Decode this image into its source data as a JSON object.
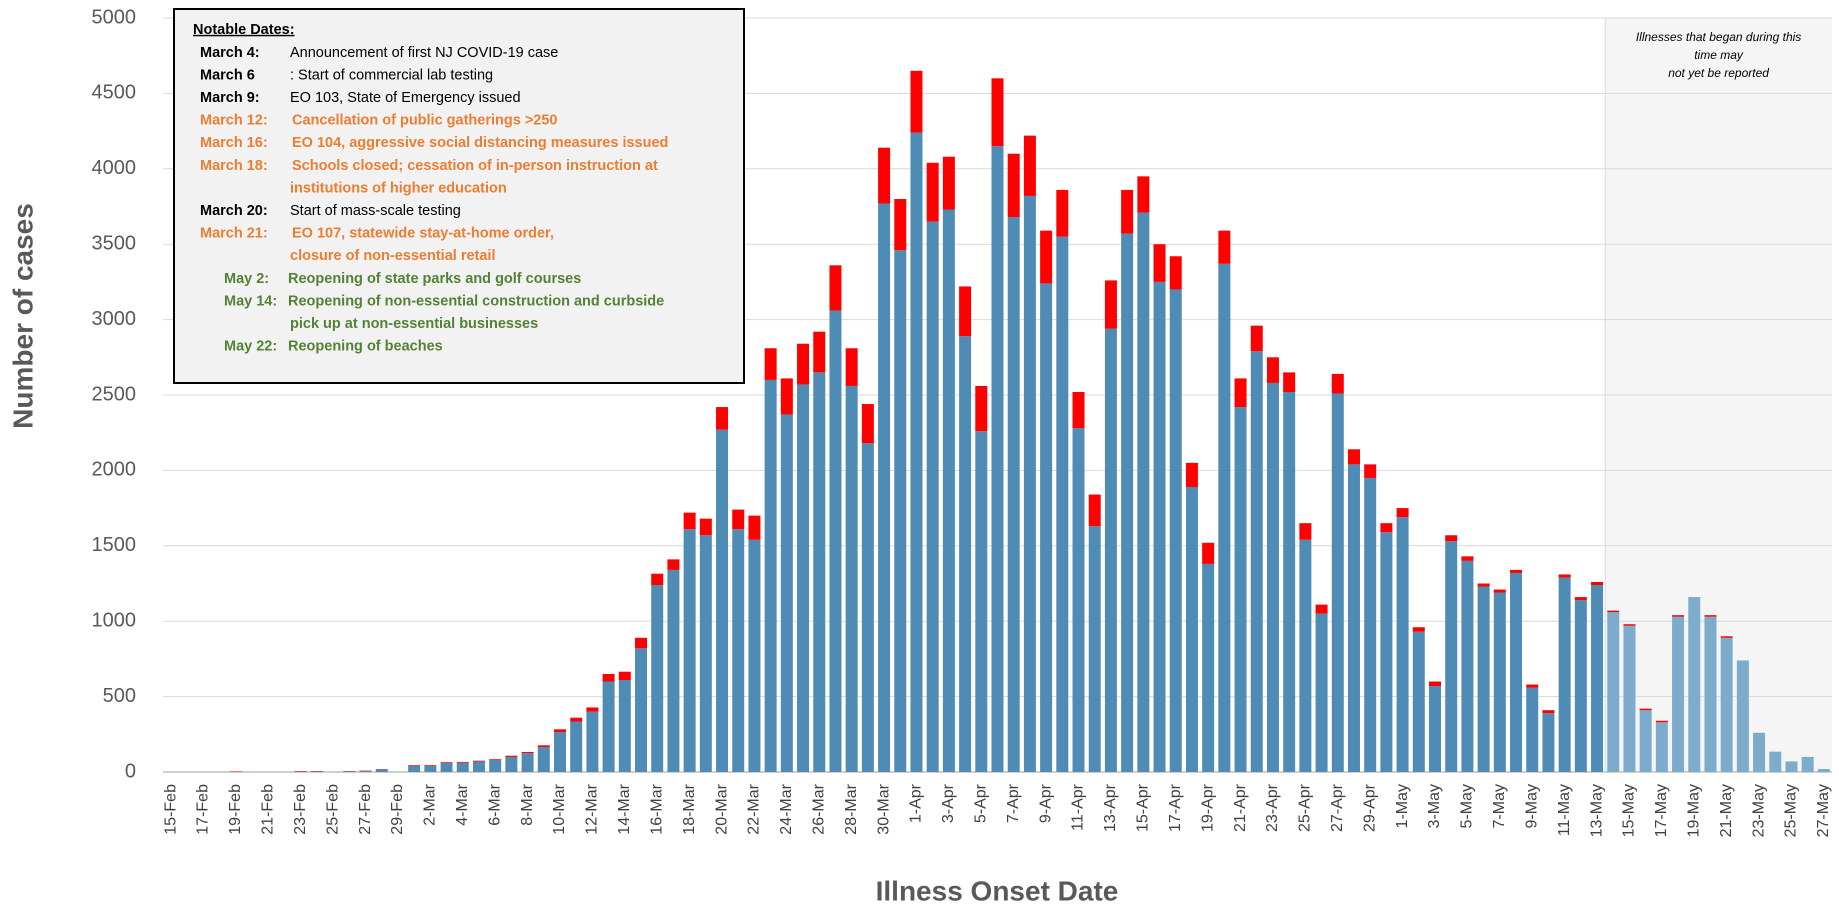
{
  "chart_data": {
    "type": "stacked_bar",
    "x_label": "Illness Onset Date",
    "y_label": "Number of cases",
    "categories": [
      "15-Feb",
      null,
      "17-Feb",
      null,
      "19-Feb",
      null,
      "21-Feb",
      null,
      "23-Feb",
      null,
      "25-Feb",
      null,
      "27-Feb",
      null,
      "29-Feb",
      null,
      "2-Mar",
      null,
      "4-Mar",
      null,
      "6-Mar",
      null,
      "8-Mar",
      null,
      "10-Mar",
      null,
      "12-Mar",
      null,
      "14-Mar",
      null,
      "16-Mar",
      null,
      "18-Mar",
      null,
      "20-Mar",
      null,
      "22-Mar",
      null,
      "24-Mar",
      null,
      "26-Mar",
      null,
      "28-Mar",
      null,
      "30-Mar",
      null,
      "1-Apr",
      null,
      "3-Apr",
      null,
      "5-Apr",
      null,
      "7-Apr",
      null,
      "9-Apr",
      null,
      "11-Apr",
      null,
      "13-Apr",
      null,
      "15-Apr",
      null,
      "17-Apr",
      null,
      "19-Apr",
      null,
      "21-Apr",
      null,
      "23-Apr",
      null,
      "25-Apr",
      null,
      "27-Apr",
      null,
      "29-Apr",
      null,
      "1-May",
      null,
      "3-May",
      null,
      "5-May",
      null,
      "7-May",
      null,
      "9-May",
      null,
      "11-May",
      null,
      "13-May",
      null,
      "15-May",
      null,
      "17-May",
      null,
      "19-May",
      null,
      "21-May",
      null,
      "23-May",
      null,
      "25-May",
      null,
      "27-May"
    ],
    "series": [
      {
        "colors": [
          "#4f8cb5",
          "#4f8cb5",
          "#4f8cb5",
          "#4f8cb5",
          "#4f8cb5",
          "#4f8cb5",
          "#4f8cb5",
          "#4f8cb5",
          "#4f8cb5",
          "#4f8cb5",
          "#4f8cb5",
          "#4f8cb5",
          "#4f8cb5",
          "#4f8cb5",
          "#4f8cb5",
          "#4f8cb5",
          "#4f8cb5",
          "#4f8cb5",
          "#4f8cb5",
          "#4f8cb5",
          "#4f8cb5",
          "#4f8cb5",
          "#4f8cb5",
          "#4f8cb5",
          "#4f8cb5",
          "#4f8cb5",
          "#4f8cb5",
          "#4f8cb5",
          "#4f8cb5",
          "#4f8cb5",
          "#4f8cb5",
          "#4f8cb5",
          "#4f8cb5",
          "#4f8cb5",
          "#4f8cb5",
          "#4f8cb5",
          "#4f8cb5",
          "#4f8cb5",
          "#4f8cb5",
          "#4f8cb5",
          "#4f8cb5",
          "#4f8cb5",
          "#4f8cb5",
          "#4f8cb5",
          "#4f8cb5",
          "#4f8cb5",
          "#4f8cb5",
          "#4f8cb5",
          "#4f8cb5",
          "#4f8cb5",
          "#4f8cb5",
          "#4f8cb5",
          "#4f8cb5",
          "#4f8cb5",
          "#4f8cb5",
          "#4f8cb5",
          "#4f8cb5",
          "#4f8cb5",
          "#4f8cb5",
          "#4f8cb5",
          "#4f8cb5",
          "#4f8cb5",
          "#4f8cb5",
          "#4f8cb5",
          "#4f8cb5",
          "#4f8cb5",
          "#4f8cb5",
          "#4f8cb5",
          "#4f8cb5",
          "#4f8cb5",
          "#4f8cb5",
          "#4f8cb5",
          "#4f8cb5",
          "#4f8cb5",
          "#4f8cb5",
          "#4f8cb5",
          "#4f8cb5",
          "#4f8cb5",
          "#4f8cb5",
          "#4f8cb5",
          "#4f8cb5",
          "#4f8cb5",
          "#4f8cb5",
          "#4f8cb5",
          "#4f8cb5",
          "#4f8cb5",
          "#4f8cb5",
          "#4f8cb5",
          "#4f8cb5",
          "#7cabcc",
          "#7cabcc",
          "#7cabcc",
          "#7cabcc",
          "#7cabcc",
          "#7cabcc",
          "#7cabcc",
          "#7cabcc",
          "#7cabcc",
          "#7cabcc",
          "#7cabcc",
          "#7cabcc",
          "#7cabcc",
          "#7cabcc"
        ],
        "values": [
          0,
          0,
          0,
          0,
          0,
          0,
          0,
          0,
          3,
          3,
          0,
          5,
          6,
          18,
          0,
          40,
          40,
          60,
          62,
          70,
          80,
          100,
          125,
          165,
          265,
          335,
          400,
          600,
          610,
          820,
          1240,
          1340,
          1610,
          1570,
          2270,
          1610,
          1540,
          2600,
          2370,
          2570,
          2650,
          3060,
          2560,
          2180,
          3770,
          3460,
          4240,
          3650,
          3730,
          2890,
          2260,
          4150,
          3680,
          3820,
          3240,
          3550,
          2280,
          1630,
          2940,
          3570,
          3710,
          3250,
          3200,
          1890,
          1380,
          3370,
          2420,
          2790,
          2580,
          2520,
          1540,
          1050,
          2510,
          2040,
          1950,
          1590,
          1690,
          930,
          570,
          1530,
          1400,
          1230,
          1190,
          1320,
          560,
          390,
          1290,
          1140,
          1240,
          1060,
          970,
          410,
          330,
          1030,
          1160,
          1030,
          890,
          740,
          260,
          135,
          70,
          100,
          20
        ]
      },
      {
        "color": "#ff0000",
        "values": [
          0,
          0,
          0,
          0,
          3,
          0,
          0,
          0,
          3,
          3,
          0,
          2,
          3,
          2,
          0,
          5,
          5,
          5,
          5,
          5,
          5,
          8,
          8,
          12,
          18,
          25,
          28,
          50,
          55,
          70,
          75,
          70,
          110,
          110,
          150,
          130,
          160,
          210,
          240,
          270,
          270,
          300,
          250,
          260,
          370,
          340,
          410,
          390,
          350,
          330,
          300,
          450,
          420,
          400,
          350,
          310,
          240,
          210,
          320,
          290,
          240,
          250,
          220,
          160,
          140,
          220,
          190,
          170,
          170,
          130,
          110,
          60,
          130,
          100,
          90,
          60,
          60,
          30,
          30,
          40,
          30,
          20,
          20,
          20,
          20,
          20,
          20,
          20,
          20,
          10,
          10,
          10,
          10,
          10,
          0,
          10,
          10,
          0,
          0,
          0,
          0,
          0,
          0
        ]
      }
    ],
    "ylim": [
      0,
      5000
    ],
    "yticks": [
      0,
      500,
      1000,
      1500,
      2000,
      2500,
      3000,
      3500,
      4000,
      4500,
      5000
    ],
    "grid": true,
    "shaded_region": {
      "from": "13-May",
      "text": [
        "Illnesses that began during this",
        "time may",
        "not yet be reported"
      ]
    },
    "notes": {
      "title": "Notable Dates:",
      "items": [
        {
          "date": "March 4:",
          "text": [
            "Announcement of first NJ COVID-19 case"
          ],
          "color": "#000000"
        },
        {
          "date": "March 6",
          "text": [
            ": Start of commercial lab testing"
          ],
          "color": "#000000"
        },
        {
          "date": "March 9:",
          "text": [
            "EO 103, State of Emergency issued"
          ],
          "color": "#000000"
        },
        {
          "date": "March 12:",
          "text": [
            "Cancellation of public gatherings >250"
          ],
          "color": "#ed7d31"
        },
        {
          "date": "March 16:",
          "text": [
            "EO 104, aggressive social distancing measures issued"
          ],
          "color": "#ed7d31"
        },
        {
          "date": "March 18:",
          "text": [
            "Schools closed; cessation of in-person    instruction at",
            "institutions of higher education"
          ],
          "color": "#ed7d31"
        },
        {
          "date": "March 20:",
          "text": [
            "Start of mass-scale testing"
          ],
          "color": "#000000"
        },
        {
          "date": "March 21:",
          "text": [
            "EO 107, statewide stay-at-home order,",
            "closure of non-essential retail"
          ],
          "color": "#ed7d31"
        },
        {
          "date": "May 2:",
          "text": [
            "Reopening of state parks and golf courses"
          ],
          "color": "#548235"
        },
        {
          "date": "May 14:",
          "text": [
            "Reopening of non-essential construction and curbside",
            "pick up at non-essential businesses"
          ],
          "color": "#548235"
        },
        {
          "date": "May 22:",
          "text": [
            "Reopening of beaches"
          ],
          "color": "#548235"
        }
      ]
    }
  }
}
